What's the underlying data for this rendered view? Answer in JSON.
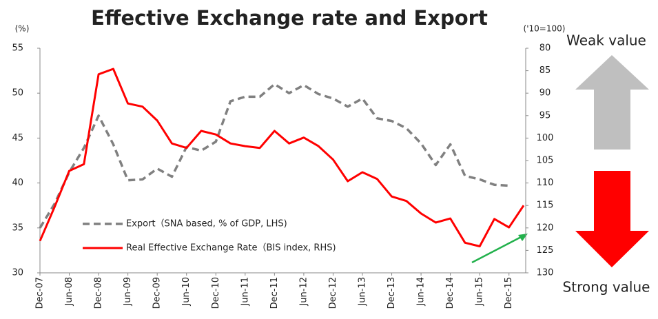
{
  "chart_data": {
    "type": "line",
    "title": "Effective Exchange rate and Export",
    "y_unit": "(%)",
    "y2_unit": "('10=100)",
    "annotations": [
      "Weak value",
      "Strong value"
    ],
    "categories": [
      "Dec-07",
      null,
      "Jun-08",
      null,
      "Dec-08",
      null,
      "Jun-09",
      null,
      "Dec-09",
      null,
      "Jun-10",
      null,
      "Dec-10",
      null,
      "Jun-11",
      null,
      "Dec-11",
      null,
      "Jun-12",
      null,
      "Dec-12",
      null,
      "Jun-13",
      null,
      "Dec-13",
      null,
      "Jun-14",
      null,
      "Dec-14",
      null,
      "Jun-15",
      null,
      "Dec-15",
      null
    ],
    "ylim": [
      30,
      55
    ],
    "yticks": [
      30,
      35,
      40,
      45,
      50,
      55
    ],
    "y2lim": [
      130,
      80
    ],
    "y2ticks": [
      80,
      85,
      90,
      95,
      100,
      105,
      110,
      115,
      120,
      125,
      130
    ],
    "y2_inverted": true,
    "series": [
      {
        "name": "Export（SNA based, % of GDP, LHS)",
        "color": "#808080",
        "dashed": true,
        "values": [
          35.0,
          37.7,
          41.2,
          43.9,
          47.5,
          44.3,
          40.3,
          40.4,
          41.6,
          40.7,
          44.0,
          43.6,
          44.6,
          49.1,
          49.6,
          49.6,
          51.0,
          50.0,
          50.9,
          49.9,
          49.4,
          48.5,
          49.4,
          47.2,
          46.9,
          46.1,
          44.4,
          42.0,
          44.3,
          40.8,
          40.4,
          39.8,
          39.7,
          null
        ]
      },
      {
        "name": "Real Effective Exchange Rate（BIS index, RHS)",
        "color": "#ff0000",
        "axis": "y2",
        "values": [
          122.9,
          115.3,
          107.3,
          105.8,
          85.8,
          84.6,
          92.3,
          93.0,
          96.1,
          101.2,
          102.2,
          98.4,
          99.2,
          101.2,
          101.8,
          102.2,
          98.4,
          101.2,
          99.9,
          101.8,
          104.8,
          109.6,
          107.6,
          109.1,
          113.0,
          114.0,
          116.8,
          118.8,
          117.9,
          123.3,
          124.1,
          118.0,
          119.9,
          115.0
        ]
      }
    ]
  }
}
